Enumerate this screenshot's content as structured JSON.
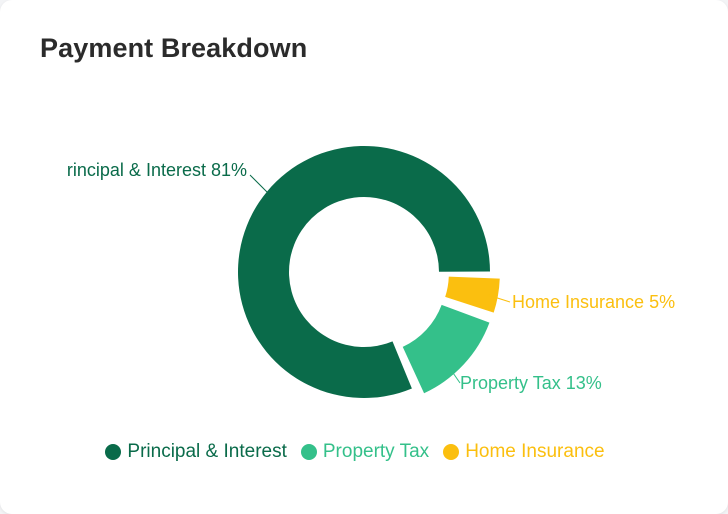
{
  "card": {
    "title": "Payment Breakdown"
  },
  "colors": {
    "principal_interest": "#0a6b4a",
    "property_tax": "#34c08a",
    "home_insurance": "#fbbf0f"
  },
  "chart_data": {
    "type": "pie",
    "variant": "donut",
    "title": "Payment Breakdown",
    "slices": [
      {
        "name": "Principal & Interest",
        "value": 81,
        "label": "rincipal & Interest 81%",
        "color": "#0a6b4a"
      },
      {
        "name": "Property Tax",
        "value": 13,
        "label": "Property Tax 13%",
        "color": "#34c08a"
      },
      {
        "name": "Home Insurance",
        "value": 5,
        "label": "Home Insurance 5%",
        "color": "#fbbf0f"
      }
    ],
    "legend": {
      "placement": "bottom",
      "items": [
        {
          "label": "Principal & Interest",
          "color": "#0a6b4a"
        },
        {
          "label": "Property Tax",
          "color": "#34c08a"
        },
        {
          "label": "Home Insurance",
          "color": "#fbbf0f"
        }
      ]
    }
  }
}
